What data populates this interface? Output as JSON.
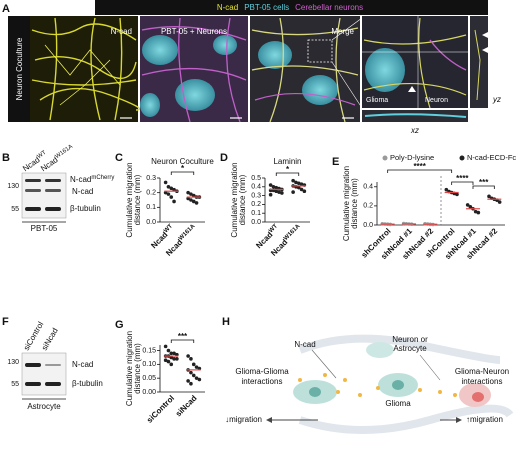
{
  "panels": {
    "A": {
      "letter": "A",
      "side_label": "Neuron Coculture",
      "header": [
        {
          "text": "N-cad",
          "color": "#e6e632"
        },
        {
          "text": "PBT-05 cells",
          "color": "#5fd0e0"
        },
        {
          "text": "Cerebellar neurons",
          "color": "#d060d0"
        }
      ],
      "image_labels": [
        "N-cad",
        "PBT-05 + Neurons",
        "Merge"
      ],
      "inset_labels": {
        "glioma": "Glioma",
        "neuron": "Neuron",
        "yz": "yz",
        "xz": "xz"
      }
    },
    "B": {
      "letter": "B",
      "lanes": [
        {
          "base": "Ncad",
          "sup": "WT"
        },
        {
          "base": "Ncad",
          "sup": "W161A"
        }
      ],
      "markers": [
        "130",
        "55"
      ],
      "bands": [
        {
          "base": "N-cad",
          "sup": "mCherry"
        },
        "N-cad",
        "β-tubulin"
      ],
      "cell_line": "PBT-05"
    },
    "C": {
      "letter": "C",
      "chart": {
        "type": "strip",
        "title": "Neuron Coculture",
        "y_label": [
          "Cumulative migration",
          "distance (mm)"
        ],
        "ylim": [
          0,
          0.3
        ],
        "yticks": [
          {
            "value": 0,
            "label": "0.0"
          },
          {
            "value": 0.1,
            "label": "0.1"
          },
          {
            "value": 0.2,
            "label": "0.2"
          },
          {
            "value": 0.3,
            "label": "0.3"
          }
        ],
        "categories": [
          {
            "base": "Ncad",
            "sup": "WT"
          },
          {
            "base": "Ncad",
            "sup": "W161A"
          }
        ],
        "series": [
          {
            "color": "#222222",
            "points": [
              [
                0.27,
                0.24,
                0.23,
                0.22,
                0.21,
                0.2,
                0.19,
                0.17,
                0.14
              ],
              [
                0.2,
                0.19,
                0.18,
                0.17,
                0.17,
                0.16,
                0.15,
                0.14,
                0.13
              ]
            ],
            "means": [
              0.21,
              0.17
            ]
          }
        ],
        "mean_color": "#e04848",
        "significance": [
          "*"
        ]
      }
    },
    "D": {
      "letter": "D",
      "chart": {
        "type": "strip",
        "title": "Laminin",
        "y_label": [
          "Cumulative migration",
          "distance (mm)"
        ],
        "ylim": [
          0,
          0.5
        ],
        "yticks": [
          {
            "value": 0,
            "label": "0.0"
          },
          {
            "value": 0.1,
            "label": "0.1"
          },
          {
            "value": 0.2,
            "label": "0.2"
          },
          {
            "value": 0.3,
            "label": "0.3"
          },
          {
            "value": 0.4,
            "label": "0.4"
          },
          {
            "value": 0.5,
            "label": "0.5"
          }
        ],
        "categories": [
          {
            "base": "Ncad",
            "sup": "WT"
          },
          {
            "base": "Ncad",
            "sup": "W161A"
          }
        ],
        "series": [
          {
            "color": "#222222",
            "points": [
              [
                0.42,
                0.4,
                0.39,
                0.38,
                0.37,
                0.36,
                0.36,
                0.35,
                0.34,
                0.33,
                0.31
              ],
              [
                0.47,
                0.45,
                0.44,
                0.43,
                0.42,
                0.41,
                0.4,
                0.39,
                0.37,
                0.35,
                0.34
              ]
            ],
            "means": [
              0.37,
              0.41
            ]
          }
        ],
        "mean_color": "#e04848",
        "significance": [
          "*"
        ]
      }
    },
    "E": {
      "letter": "E",
      "chart": {
        "type": "strip",
        "y_label": [
          "Cumulative migration",
          "distance (mm)"
        ],
        "ylim": [
          0,
          0.45
        ],
        "yticks": [
          {
            "value": 0,
            "label": "0.0"
          },
          {
            "value": 0.2,
            "label": "0.2"
          },
          {
            "value": 0.4,
            "label": "0.4"
          }
        ],
        "categories": [
          "shControl",
          "shNcad #1",
          "shNcad #2",
          "shControl",
          "shNcad #1",
          "shNcad #2"
        ],
        "series": [
          {
            "name": "Poly-D-lysine",
            "color": "#9a9a9a",
            "points": [
              [
                0.012,
                0.01,
                0.008,
                0.006
              ],
              [
                0.015,
                0.012,
                0.01,
                0.008
              ],
              [
                0.012,
                0.01,
                0.007,
                0.005
              ]
            ],
            "means": [
              0.009,
              0.011,
              0.008
            ]
          },
          {
            "name": "N-cad-ECD-Fc",
            "color": "#222222",
            "points": [
              [
                0.37,
                0.35,
                0.34,
                0.33,
                0.32
              ],
              [
                0.21,
                0.19,
                0.17,
                0.14,
                0.13
              ],
              [
                0.3,
                0.28,
                0.27,
                0.26,
                0.24
              ]
            ],
            "means": [
              0.34,
              0.17,
              0.27
            ]
          }
        ],
        "mean_color": "#e04848",
        "significance": [
          "****",
          "****",
          "***"
        ]
      }
    },
    "F": {
      "letter": "F",
      "lanes": [
        "siControl",
        "siNcad"
      ],
      "markers": [
        "130",
        "55"
      ],
      "bands": [
        "N-cad",
        "β-tubulin"
      ],
      "cell_line": "Astrocyte"
    },
    "G": {
      "letter": "G",
      "chart": {
        "type": "strip",
        "y_label": [
          "Cumulative migration",
          "distance (mm)"
        ],
        "ylim": [
          0,
          0.17
        ],
        "yticks": [
          {
            "value": 0,
            "label": "0.00"
          },
          {
            "value": 0.05,
            "label": "0.05"
          },
          {
            "value": 0.1,
            "label": "0.10"
          },
          {
            "value": 0.15,
            "label": "0.15"
          }
        ],
        "categories": [
          "siControl",
          "siNcad"
        ],
        "series": [
          {
            "color": "#222222",
            "points": [
              [
                0.165,
                0.15,
                0.14,
                0.14,
                0.135,
                0.13,
                0.13,
                0.125,
                0.12,
                0.12,
                0.115,
                0.11,
                0.1
              ],
              [
                0.13,
                0.12,
                0.1,
                0.09,
                0.085,
                0.08,
                0.07,
                0.06,
                0.05,
                0.045,
                0.04,
                0.03
              ]
            ],
            "means": [
              0.13,
              0.08
            ]
          }
        ],
        "mean_color": "#e04848",
        "significance": [
          "***"
        ]
      }
    },
    "H": {
      "letter": "H",
      "ncad": "N-cad",
      "partner": [
        "Neuron or",
        "Astrocyte"
      ],
      "glioma": "Glioma",
      "left": {
        "title": [
          "Glioma-Glioma",
          "interactions"
        ],
        "effect": "↓migration"
      },
      "right": {
        "title": [
          "Glioma-Neuron",
          "interactions"
        ],
        "effect": "↑migration"
      }
    }
  }
}
